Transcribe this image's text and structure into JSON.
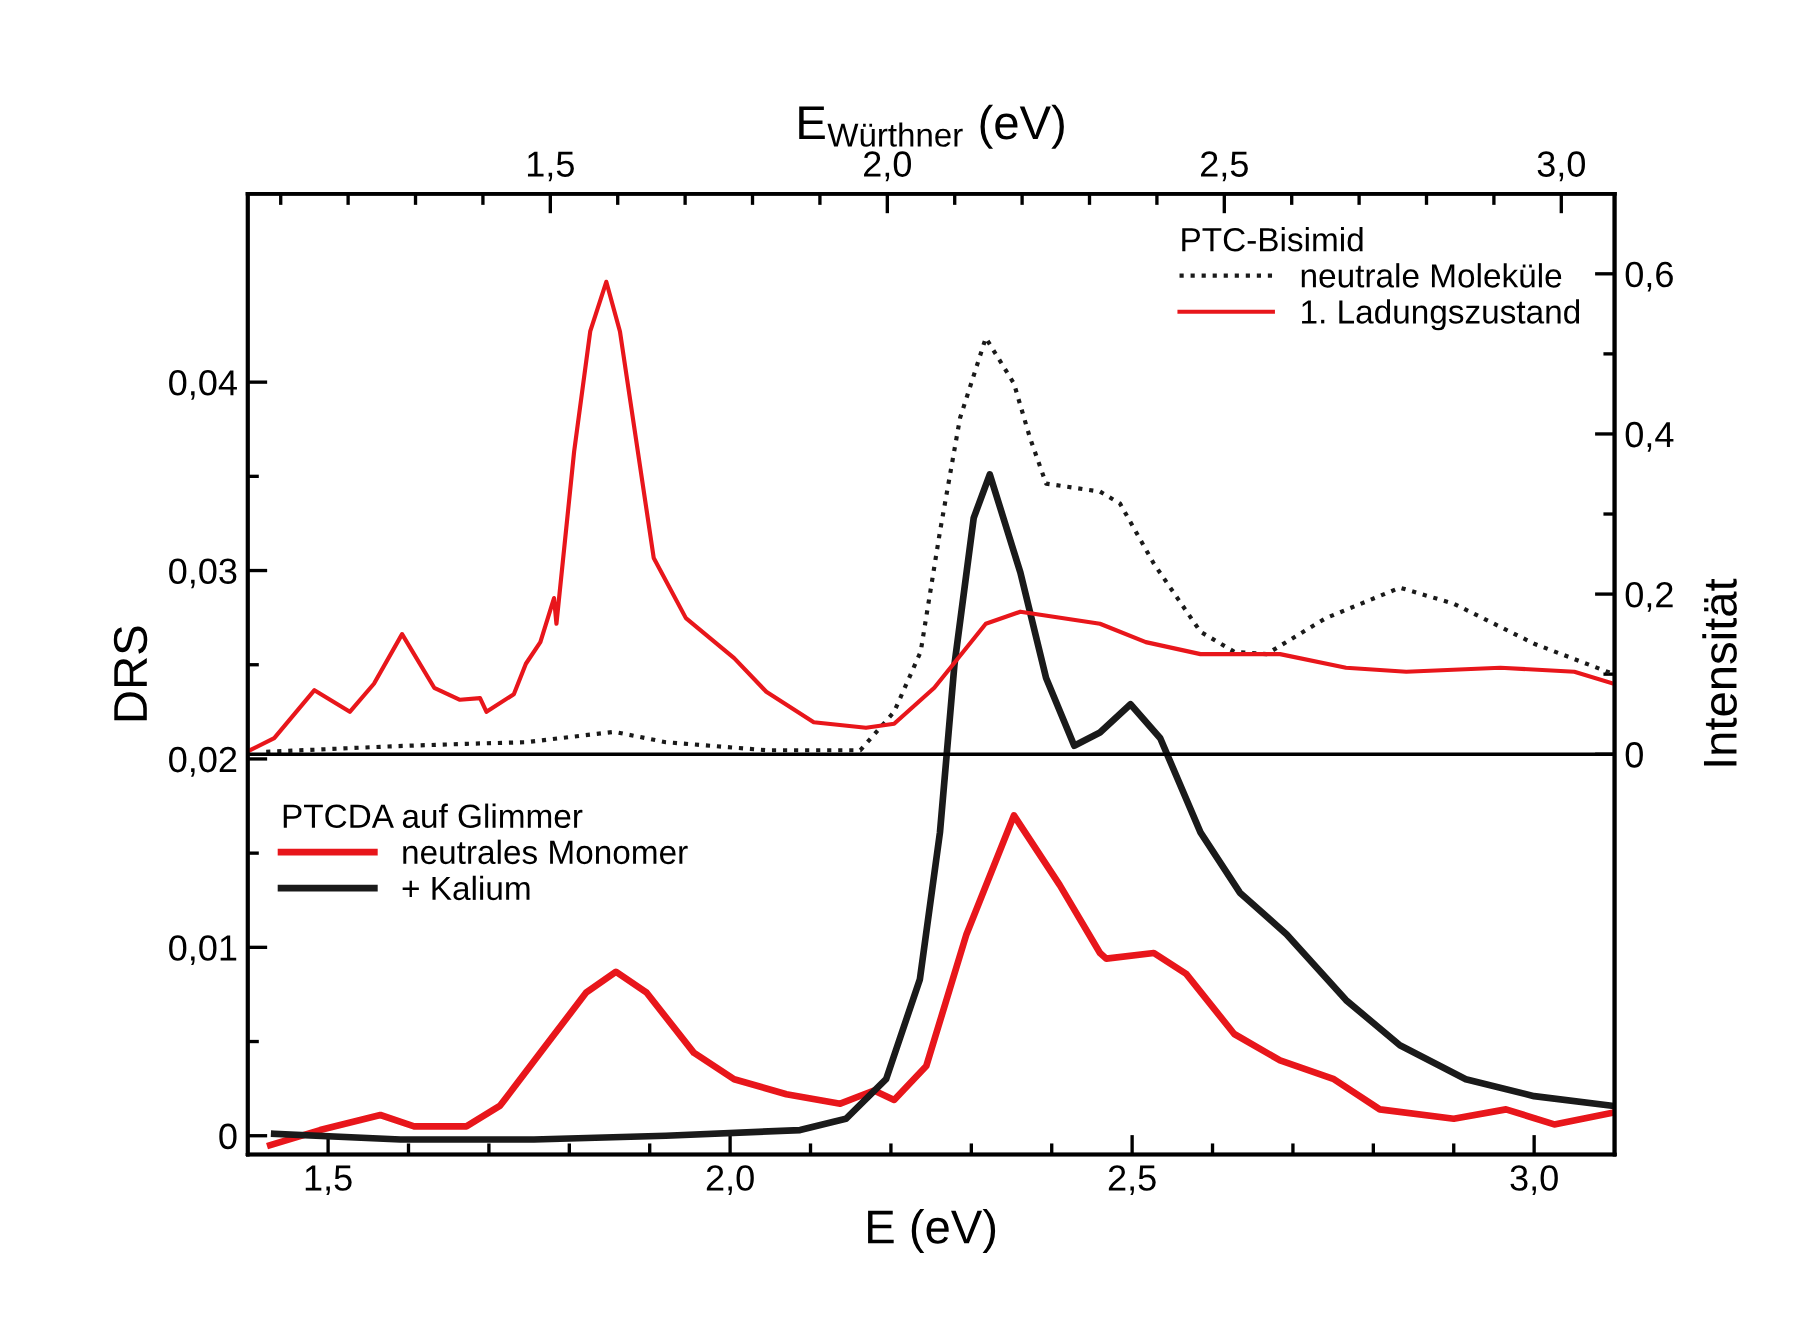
{
  "chart_data": {
    "type": "line",
    "xlabel": "E (eV)",
    "ylabel": "DRS",
    "y2label": "Intensität",
    "x2label": "E$_{Würthner}$ (eV)",
    "xlim": [
      1.4,
      3.1
    ],
    "xticks": [
      {
        "value": 1.5,
        "label": "1,5"
      },
      {
        "value": 1.6,
        "label": null
      },
      {
        "value": 1.7,
        "label": null
      },
      {
        "value": 1.8,
        "label": null
      },
      {
        "value": 1.9,
        "label": null
      },
      {
        "value": 2.0,
        "label": "2,0"
      },
      {
        "value": 2.1,
        "label": null
      },
      {
        "value": 2.2,
        "label": null
      },
      {
        "value": 2.3,
        "label": null
      },
      {
        "value": 2.4,
        "label": null
      },
      {
        "value": 2.5,
        "label": "2,5"
      },
      {
        "value": 2.6,
        "label": null
      },
      {
        "value": 2.7,
        "label": null
      },
      {
        "value": 2.8,
        "label": null
      },
      {
        "value": 2.9,
        "label": null
      },
      {
        "value": 3.0,
        "label": "3,0"
      }
    ],
    "x2lim": [
      1.051,
      3.079
    ],
    "x2ticks": [
      {
        "value": 1.1,
        "label": null
      },
      {
        "value": 1.2,
        "label": null
      },
      {
        "value": 1.3,
        "label": null
      },
      {
        "value": 1.4,
        "label": null
      },
      {
        "value": 1.5,
        "label": "1,5"
      },
      {
        "value": 1.6,
        "label": null
      },
      {
        "value": 1.7,
        "label": null
      },
      {
        "value": 1.8,
        "label": null
      },
      {
        "value": 1.9,
        "label": null
      },
      {
        "value": 2.0,
        "label": "2,0"
      },
      {
        "value": 2.1,
        "label": null
      },
      {
        "value": 2.2,
        "label": null
      },
      {
        "value": 2.3,
        "label": null
      },
      {
        "value": 2.4,
        "label": null
      },
      {
        "value": 2.5,
        "label": "2,5"
      },
      {
        "value": 2.6,
        "label": null
      },
      {
        "value": 2.7,
        "label": null
      },
      {
        "value": 2.8,
        "label": null
      },
      {
        "value": 2.9,
        "label": null
      },
      {
        "value": 3.0,
        "label": "3,0"
      }
    ],
    "ylim": [
      -0.001,
      0.05
    ],
    "yticks": [
      0,
      {
        "value": 0.005,
        "label": null
      },
      {
        "value": 0.01,
        "label": "0,01"
      },
      {
        "value": 0.015,
        "label": null
      },
      {
        "value": 0.02,
        "label": "0,02"
      },
      {
        "value": 0.025,
        "label": null
      },
      {
        "value": 0.03,
        "label": "0,03"
      },
      {
        "value": 0.035,
        "label": null
      },
      {
        "value": 0.04,
        "label": "0,04"
      }
    ],
    "y2lim": [
      -0.5,
      0.7
    ],
    "y2ticks": [
      0,
      {
        "value": 0.1,
        "label": null
      },
      {
        "value": 0.2,
        "label": "0,2"
      },
      {
        "value": 0.3,
        "label": null
      },
      {
        "value": 0.4,
        "label": "0,4"
      },
      {
        "value": 0.5,
        "label": null
      },
      {
        "value": 0.6,
        "label": "0,6"
      }
    ],
    "ref_lines": [
      {
        "axis": "y2",
        "value": 0,
        "color": "#000000"
      }
    ],
    "legend": [
      "left",
      "top right"
    ],
    "legend_title": [
      "PTCDA auf Glimmer",
      "PTC-Bisimid"
    ],
    "grid": false,
    "series": [
      {
        "name": "neutrales Monomer",
        "color": "#e8161b",
        "axis": "y",
        "line_style": "solid",
        "x": [
          1.428,
          1.49,
          1.565,
          1.607,
          1.672,
          1.714,
          1.771,
          1.821,
          1.858,
          1.896,
          1.955,
          2.005,
          2.07,
          2.137,
          2.179,
          2.204,
          2.244,
          2.294,
          2.353,
          2.41,
          2.46,
          2.468,
          2.527,
          2.567,
          2.627,
          2.684,
          2.751,
          2.808,
          2.9,
          2.965,
          3.025,
          3.095
        ],
        "values": [
          -0.0005,
          0.0003,
          0.0011,
          0.0005,
          0.0005,
          0.0016,
          0.0048,
          0.0076,
          0.0087,
          0.0076,
          0.0044,
          0.003,
          0.0022,
          0.0017,
          0.0024,
          0.0019,
          0.0037,
          0.0107,
          0.017,
          0.0133,
          0.0097,
          0.0094,
          0.0097,
          0.0086,
          0.0054,
          0.004,
          0.003,
          0.0014,
          0.0009,
          0.0014,
          0.0006,
          0.0012
        ]
      },
      {
        "name": "+ Kalium",
        "color": "#1a1a1a",
        "axis": "y",
        "line_style": "solid",
        "x": [
          1.433,
          1.59,
          1.756,
          1.92,
          2.087,
          2.144,
          2.194,
          2.236,
          2.261,
          2.279,
          2.303,
          2.323,
          2.361,
          2.393,
          2.428,
          2.46,
          2.498,
          2.535,
          2.585,
          2.634,
          2.692,
          2.766,
          2.833,
          2.915,
          3.0,
          3.095
        ],
        "values": [
          0.0001,
          -0.0002,
          -0.0002,
          0.0,
          0.0003,
          0.0009,
          0.003,
          0.0083,
          0.0161,
          0.025,
          0.0328,
          0.0351,
          0.0299,
          0.0243,
          0.0207,
          0.0214,
          0.0229,
          0.0211,
          0.0161,
          0.0129,
          0.0107,
          0.0072,
          0.0048,
          0.003,
          0.0021,
          0.0016
        ]
      },
      {
        "name": "neutrale Moleküle",
        "color": "#1a1a1a",
        "axis": "y2",
        "line_style": "dotted",
        "x": [
          1.423,
          1.582,
          1.672,
          1.746,
          1.856,
          1.92,
          2.045,
          2.162,
          2.204,
          2.237,
          2.261,
          2.286,
          2.318,
          2.353,
          2.373,
          2.393,
          2.46,
          2.485,
          2.527,
          2.585,
          2.627,
          2.667,
          2.741,
          2.833,
          2.9,
          3.0,
          3.099
        ],
        "values": [
          0.003,
          0.01,
          0.013,
          0.015,
          0.028,
          0.015,
          0.005,
          0.005,
          0.053,
          0.128,
          0.278,
          0.42,
          0.52,
          0.463,
          0.395,
          0.338,
          0.328,
          0.313,
          0.238,
          0.153,
          0.128,
          0.125,
          0.17,
          0.208,
          0.188,
          0.138,
          0.1
        ]
      },
      {
        "name": "1. Ladungszustand",
        "color": "#e8161b",
        "axis": "y2",
        "line_style": "solid",
        "x": [
          1.403,
          1.433,
          1.483,
          1.527,
          1.557,
          1.592,
          1.632,
          1.664,
          1.689,
          1.697,
          1.731,
          1.746,
          1.764,
          1.781,
          1.784,
          1.806,
          1.826,
          1.846,
          1.863,
          1.905,
          1.945,
          2.005,
          2.045,
          2.104,
          2.169,
          2.204,
          2.254,
          2.318,
          2.361,
          2.46,
          2.517,
          2.585,
          2.684,
          2.766,
          2.841,
          2.958,
          3.05,
          3.099
        ],
        "values": [
          0.005,
          0.02,
          0.08,
          0.053,
          0.088,
          0.15,
          0.083,
          0.068,
          0.07,
          0.053,
          0.075,
          0.113,
          0.14,
          0.195,
          0.163,
          0.378,
          0.528,
          0.59,
          0.528,
          0.245,
          0.17,
          0.12,
          0.078,
          0.04,
          0.033,
          0.038,
          0.083,
          0.163,
          0.178,
          0.163,
          0.14,
          0.125,
          0.125,
          0.108,
          0.103,
          0.108,
          0.103,
          0.088
        ]
      }
    ]
  }
}
